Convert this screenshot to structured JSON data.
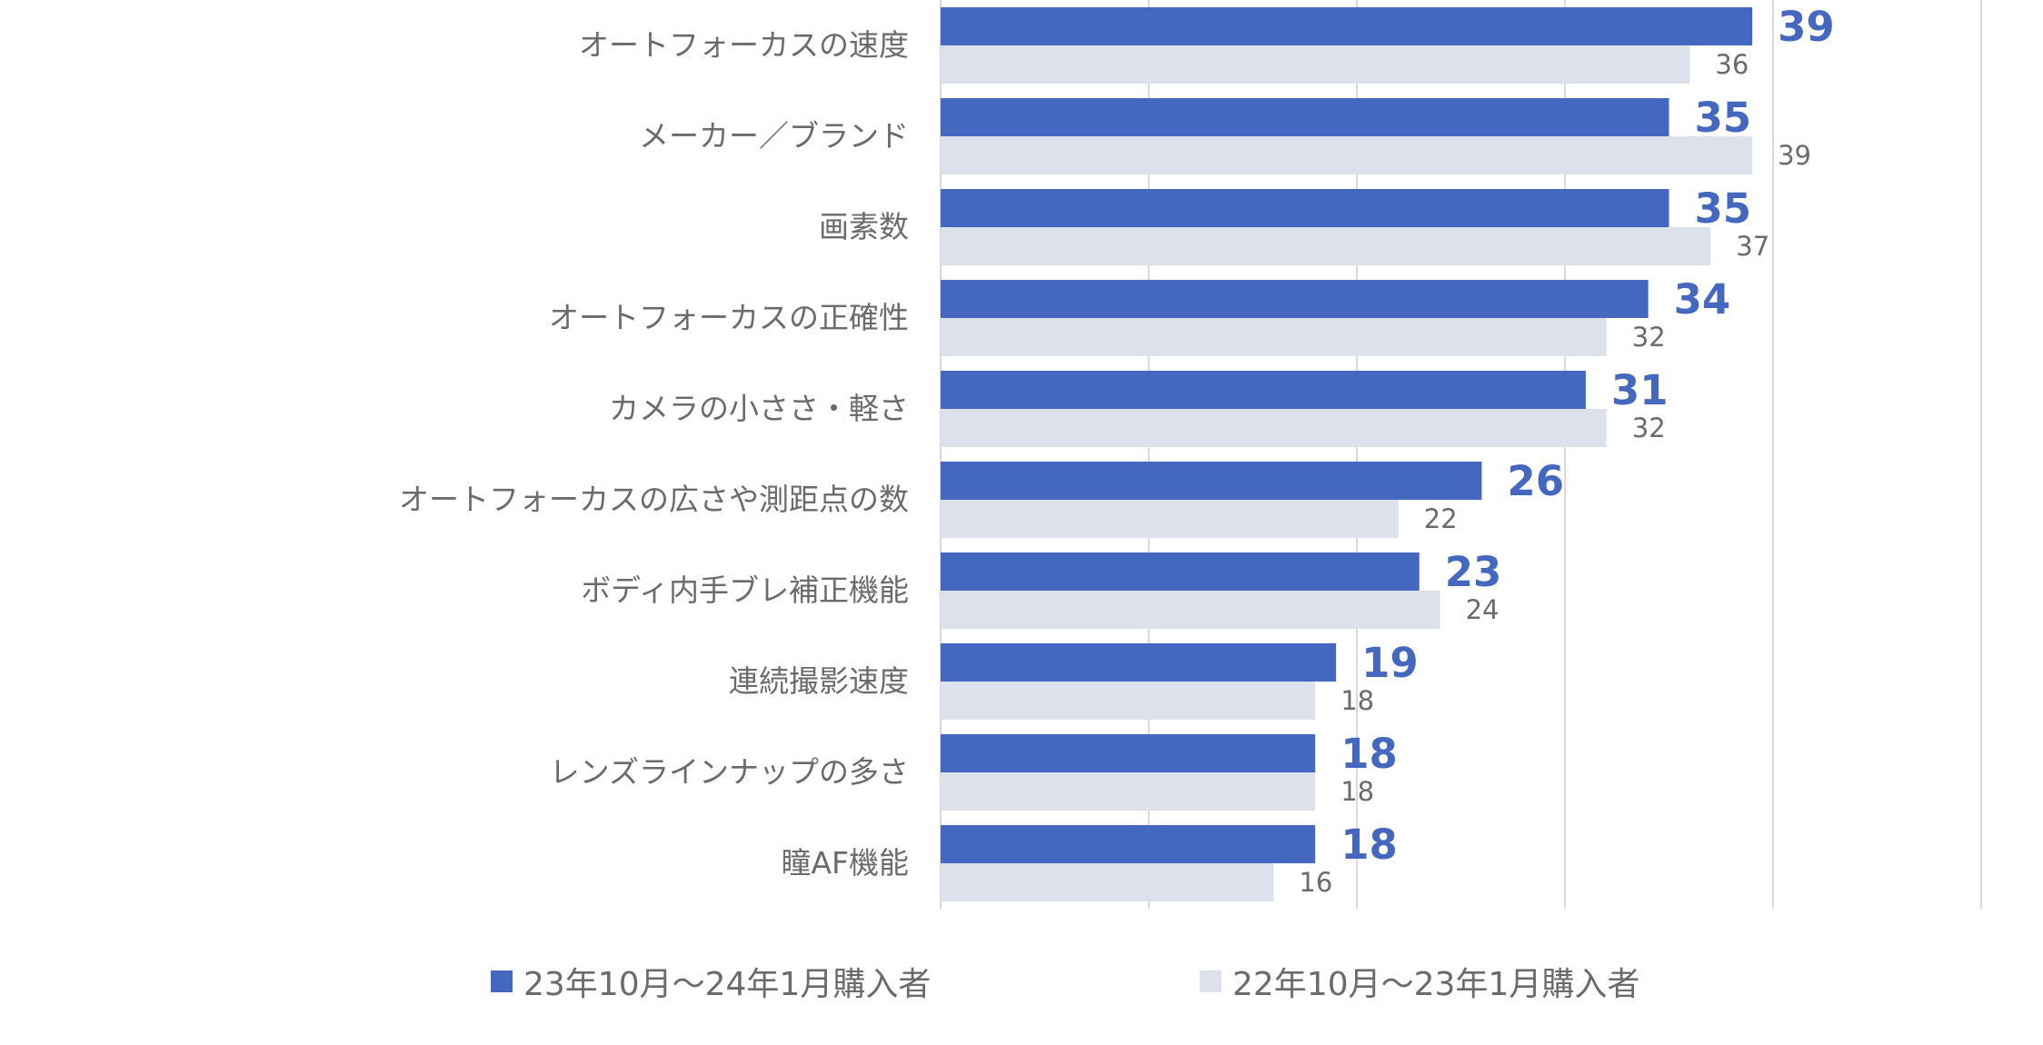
{
  "chart_data": {
    "type": "bar",
    "orientation": "horizontal",
    "categories": [
      "オートフォーカスの速度",
      "メーカー／ブランド",
      "画素数",
      "オートフォーカスの正確性",
      "カメラの小ささ・軽さ",
      "オートフォーカスの広さや測距点の数",
      "ボディ内手ブレ補正機能",
      "連続撮影速度",
      "レンズラインナップの多さ",
      "瞳AF機能"
    ],
    "series": [
      {
        "name": "23年10月～24年1月購入者",
        "color": "#4468bf",
        "values": [
          39,
          35,
          35,
          34,
          31,
          26,
          23,
          19,
          18,
          18
        ],
        "labels": [
          "39",
          "35",
          "35",
          "34",
          "31",
          "26",
          "23",
          "19",
          "18",
          "18"
        ]
      },
      {
        "name": "22年10月～23年1月購入者",
        "color": "#dde1ec",
        "values": [
          36,
          39,
          37,
          32,
          32,
          22,
          24,
          18,
          18,
          16
        ],
        "labels": [
          "36",
          "39",
          "37",
          "32",
          "32",
          "22",
          "24",
          "18",
          "18",
          "16"
        ]
      }
    ],
    "xlim": [
      0,
      50
    ],
    "grid": true,
    "legend": "bottom"
  }
}
